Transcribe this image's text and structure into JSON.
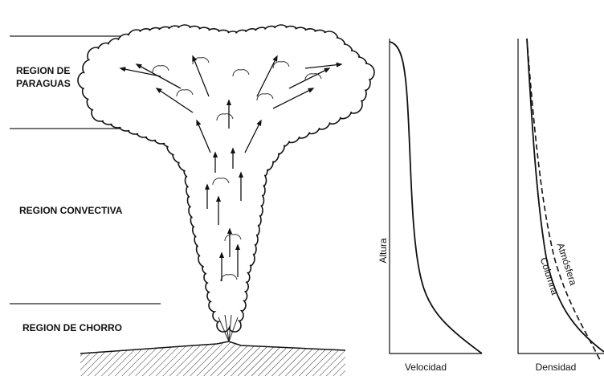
{
  "regions": {
    "umbrella": [
      "REGION DE",
      "PARAGUAS"
    ],
    "convective": "REGION CONVECTIVA",
    "jet": "REGION DE CHORRO"
  },
  "velocity_graph": {
    "y_label": "Altura",
    "x_label": "Velocidad"
  },
  "density_graph": {
    "x_label": "Densidad",
    "curves": [
      "Atmósfera",
      "Columna"
    ]
  }
}
